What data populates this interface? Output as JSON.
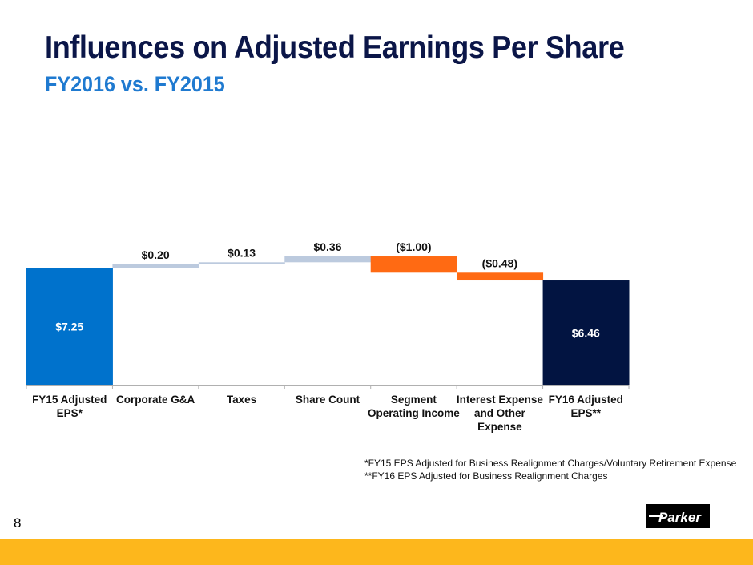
{
  "slide": {
    "title": "Influences on Adjusted Earnings Per Share",
    "subtitle": "FY2016 vs. FY2015",
    "footnotes": [
      "*FY15 EPS Adjusted for Business Realignment Charges/Voluntary Retirement Expense",
      "**FY16 EPS Adjusted for Business Realignment Charges"
    ],
    "page_number": "8",
    "logo_text": "Parker",
    "colors": {
      "title": "#0b1648",
      "subtitle": "#1f7ad0",
      "start_bar": "#0072cc",
      "increase": "#bccade",
      "decrease": "#ff6a13",
      "end_bar": "#021441",
      "footer_band": "#fdb71c"
    }
  },
  "chart_data": {
    "type": "waterfall",
    "title": "Influences on Adjusted Earnings Per Share",
    "subtitle": "FY2016 vs. FY2015",
    "xlabel": "",
    "ylabel": "",
    "grid": false,
    "legend": "none",
    "categories": [
      [
        "FY15 Adjusted",
        "EPS*"
      ],
      [
        "Corporate G&A"
      ],
      [
        "Taxes"
      ],
      [
        "Share Count"
      ],
      [
        "Segment",
        "Operating Income"
      ],
      [
        "Interest Expense",
        "and Other",
        "Expense"
      ],
      [
        "FY16 Adjusted",
        "EPS**"
      ]
    ],
    "values": [
      7.25,
      0.2,
      0.13,
      0.36,
      -1.0,
      -0.48,
      6.46
    ],
    "kinds": [
      "total",
      "delta",
      "delta",
      "delta",
      "delta",
      "delta",
      "total"
    ],
    "labels": [
      "$7.25",
      "$0.20",
      "$0.13",
      "$0.36",
      "($1.00)",
      "($0.48)",
      "$6.46"
    ],
    "label_positions": [
      "inside",
      "above",
      "above",
      "above",
      "above",
      "above",
      "inside"
    ],
    "ylim": [
      0,
      8.0
    ]
  }
}
